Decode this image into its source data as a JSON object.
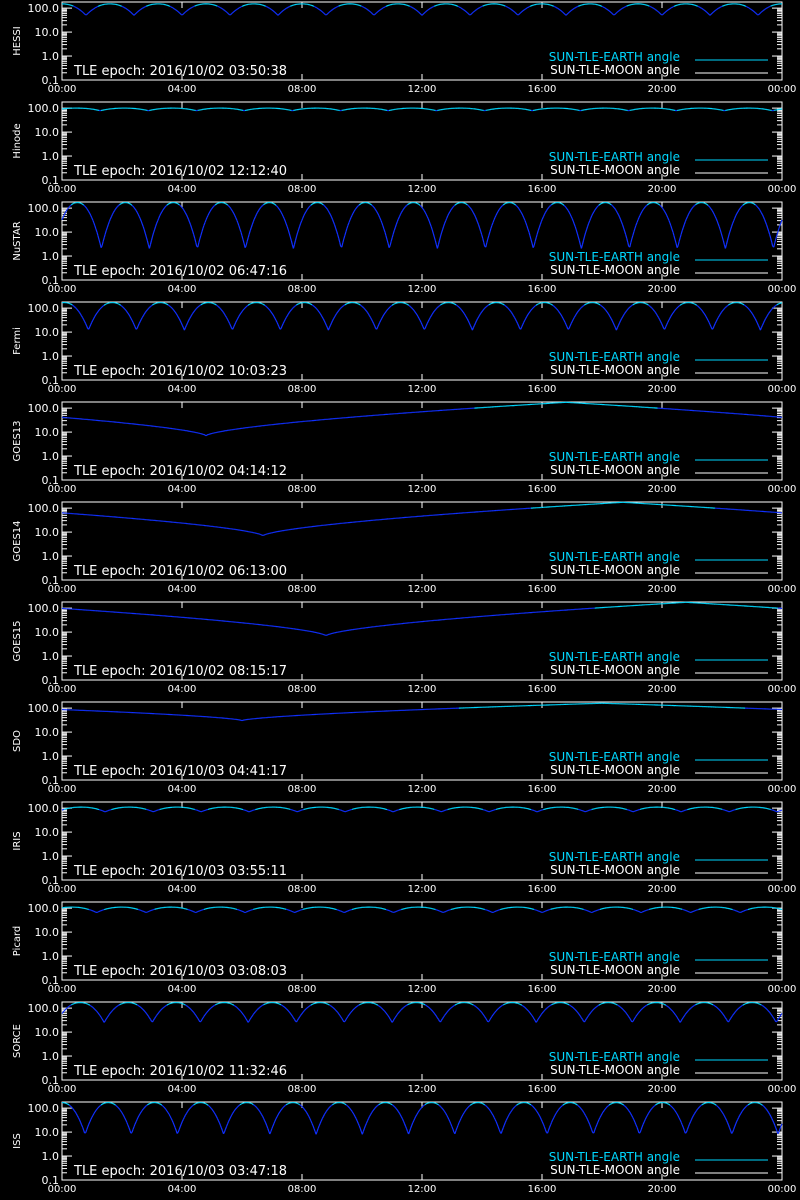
{
  "colors": {
    "background": "#000000",
    "axes": "#ffffff",
    "earth_angle": "#00d8ff",
    "dark_side": "#1030ff",
    "moon_angle": "#ffffff"
  },
  "legend": {
    "earth": "SUN-TLE-EARTH angle",
    "moon": "SUN-TLE-MOON angle"
  },
  "chart_data": [
    {
      "type": "line",
      "ylabel": "HESSI",
      "epoch_text": "TLE epoch: 2016/10/02 03:50:38",
      "x_ticks": [
        "00:00",
        "04:00",
        "08:00",
        "12:00",
        "16:00",
        "20:00",
        "00:00"
      ],
      "y_ticks": [
        "0.1",
        "1.0",
        "10.0",
        "100.0"
      ],
      "ylim": [
        0.1,
        180
      ],
      "yscale": "log",
      "xlim_hours": [
        0,
        24
      ],
      "legend_position": "bottom-right",
      "series": [
        {
          "shape": "orbital",
          "period_h": 1.6,
          "phase": 0.5,
          "min": 50,
          "max": 150
        }
      ]
    },
    {
      "type": "line",
      "ylabel": "Hinode",
      "epoch_text": "TLE epoch: 2016/10/02 12:12:40",
      "x_ticks": [
        "00:00",
        "04:00",
        "08:00",
        "12:00",
        "16:00",
        "20:00",
        "00:00"
      ],
      "y_ticks": [
        "0.1",
        "1.0",
        "10.0",
        "100.0"
      ],
      "ylim": [
        0.1,
        180
      ],
      "yscale": "log",
      "xlim_hours": [
        0,
        24
      ],
      "legend_position": "bottom-right",
      "series": [
        {
          "shape": "orbital",
          "period_h": 1.6,
          "phase": 0.2,
          "min": 78,
          "max": 100
        }
      ]
    },
    {
      "type": "line",
      "ylabel": "NuSTAR",
      "epoch_text": "TLE epoch: 2016/10/02 06:47:16",
      "x_ticks": [
        "00:00",
        "04:00",
        "08:00",
        "12:00",
        "16:00",
        "20:00",
        "00:00"
      ],
      "y_ticks": [
        "0.1",
        "1.0",
        "10.0",
        "100.0"
      ],
      "ylim": [
        0.1,
        180
      ],
      "yscale": "log",
      "xlim_hours": [
        0,
        24
      ],
      "legend_position": "bottom-right",
      "series": [
        {
          "shape": "orbital",
          "period_h": 1.6,
          "phase": 0.18,
          "min": 2,
          "max": 170
        }
      ]
    },
    {
      "type": "line",
      "ylabel": "Fermi",
      "epoch_text": "TLE epoch: 2016/10/02 10:03:23",
      "x_ticks": [
        "00:00",
        "04:00",
        "08:00",
        "12:00",
        "16:00",
        "20:00",
        "00:00"
      ],
      "y_ticks": [
        "0.1",
        "1.0",
        "10.0",
        "100.0"
      ],
      "ylim": [
        0.1,
        180
      ],
      "yscale": "log",
      "xlim_hours": [
        0,
        24
      ],
      "legend_position": "bottom-right",
      "series": [
        {
          "shape": "orbital",
          "period_h": 1.6,
          "phase": 0.45,
          "min": 12,
          "max": 170
        }
      ]
    },
    {
      "type": "line",
      "ylabel": "GOES13",
      "epoch_text": "TLE epoch: 2016/10/02 04:14:12",
      "x_ticks": [
        "00:00",
        "04:00",
        "08:00",
        "12:00",
        "16:00",
        "20:00",
        "00:00"
      ],
      "y_ticks": [
        "0.1",
        "1.0",
        "10.0",
        "100.0"
      ],
      "ylim": [
        0.1,
        180
      ],
      "yscale": "log",
      "xlim_hours": [
        0,
        24
      ],
      "legend_position": "bottom-right",
      "series": [
        {
          "shape": "geo",
          "min_hour": 4.8,
          "min": 7,
          "max": 175
        }
      ]
    },
    {
      "type": "line",
      "ylabel": "GOES14",
      "epoch_text": "TLE epoch: 2016/10/02 06:13:00",
      "x_ticks": [
        "00:00",
        "04:00",
        "08:00",
        "12:00",
        "16:00",
        "20:00",
        "00:00"
      ],
      "y_ticks": [
        "0.1",
        "1.0",
        "10.0",
        "100.0"
      ],
      "ylim": [
        0.1,
        180
      ],
      "yscale": "log",
      "xlim_hours": [
        0,
        24
      ],
      "legend_position": "bottom-right",
      "series": [
        {
          "shape": "geo",
          "min_hour": 6.7,
          "min": 7,
          "max": 175
        }
      ]
    },
    {
      "type": "line",
      "ylabel": "GOES15",
      "epoch_text": "TLE epoch: 2016/10/02 08:15:17",
      "x_ticks": [
        "00:00",
        "04:00",
        "08:00",
        "12:00",
        "16:00",
        "20:00",
        "00:00"
      ],
      "y_ticks": [
        "0.1",
        "1.0",
        "10.0",
        "100.0"
      ],
      "ylim": [
        0.1,
        180
      ],
      "yscale": "log",
      "xlim_hours": [
        0,
        24
      ],
      "legend_position": "bottom-right",
      "series": [
        {
          "shape": "geo",
          "min_hour": 8.8,
          "min": 7,
          "max": 175
        }
      ]
    },
    {
      "type": "line",
      "ylabel": "SDO",
      "epoch_text": "TLE epoch: 2016/10/03 04:41:17",
      "x_ticks": [
        "00:00",
        "04:00",
        "08:00",
        "12:00",
        "16:00",
        "20:00",
        "00:00"
      ],
      "y_ticks": [
        "0.1",
        "1.0",
        "10.0",
        "100.0"
      ],
      "ylim": [
        0.1,
        180
      ],
      "yscale": "log",
      "xlim_hours": [
        0,
        24
      ],
      "legend_position": "bottom-right",
      "series": [
        {
          "shape": "geo",
          "min_hour": 6.0,
          "min": 30,
          "max": 160
        }
      ]
    },
    {
      "type": "line",
      "ylabel": "IRIS",
      "epoch_text": "TLE epoch: 2016/10/03 03:55:11",
      "x_ticks": [
        "00:00",
        "04:00",
        "08:00",
        "12:00",
        "16:00",
        "20:00",
        "00:00"
      ],
      "y_ticks": [
        "0.1",
        "1.0",
        "10.0",
        "100.0"
      ],
      "ylim": [
        0.1,
        180
      ],
      "yscale": "log",
      "xlim_hours": [
        0,
        24
      ],
      "legend_position": "bottom-right",
      "series": [
        {
          "shape": "orbital",
          "period_h": 1.6,
          "phase": 0.1,
          "min": 70,
          "max": 110
        }
      ]
    },
    {
      "type": "line",
      "ylabel": "Picard",
      "epoch_text": "TLE epoch: 2016/10/03 03:08:03",
      "x_ticks": [
        "00:00",
        "04:00",
        "08:00",
        "12:00",
        "16:00",
        "20:00",
        "00:00"
      ],
      "y_ticks": [
        "0.1",
        "1.0",
        "10.0",
        "100.0"
      ],
      "ylim": [
        0.1,
        180
      ],
      "yscale": "log",
      "xlim_hours": [
        0,
        24
      ],
      "legend_position": "bottom-right",
      "series": [
        {
          "shape": "orbital",
          "period_h": 1.65,
          "phase": 0.3,
          "min": 65,
          "max": 110
        }
      ]
    },
    {
      "type": "line",
      "ylabel": "SORCE",
      "epoch_text": "TLE epoch: 2016/10/02 11:32:46",
      "x_ticks": [
        "00:00",
        "04:00",
        "08:00",
        "12:00",
        "16:00",
        "20:00",
        "00:00"
      ],
      "y_ticks": [
        "0.1",
        "1.0",
        "10.0",
        "100.0"
      ],
      "ylim": [
        0.1,
        180
      ],
      "yscale": "log",
      "xlim_hours": [
        0,
        24
      ],
      "legend_position": "bottom-right",
      "series": [
        {
          "shape": "orbital",
          "period_h": 1.6,
          "phase": 0.12,
          "min": 25,
          "max": 170
        }
      ]
    },
    {
      "type": "line",
      "ylabel": "ISS",
      "epoch_text": "TLE epoch: 2016/10/03 03:47:18",
      "x_ticks": [
        "00:00",
        "04:00",
        "08:00",
        "12:00",
        "16:00",
        "20:00",
        "00:00"
      ],
      "y_ticks": [
        "0.1",
        "1.0",
        "10.0",
        "100.0"
      ],
      "ylim": [
        0.1,
        180
      ],
      "yscale": "log",
      "xlim_hours": [
        0,
        24
      ],
      "legend_position": "bottom-right",
      "series": [
        {
          "shape": "orbital",
          "period_h": 1.54,
          "phase": 0.5,
          "min": 8,
          "max": 170
        }
      ]
    }
  ]
}
